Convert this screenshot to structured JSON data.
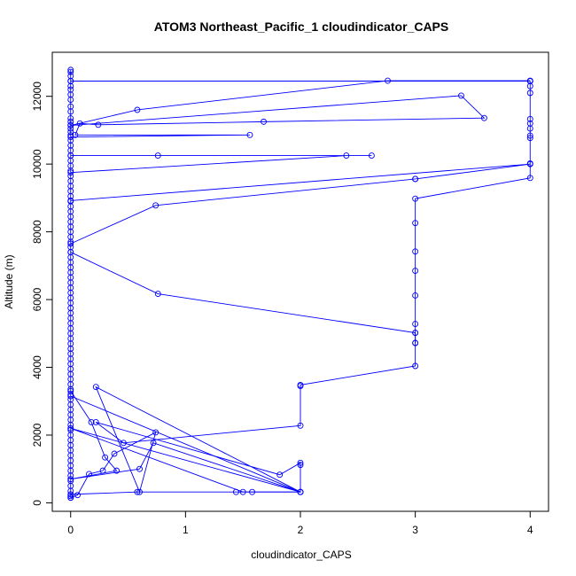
{
  "chart_data": {
    "type": "line",
    "title": "ATOM3 Northeast_Pacific_1 cloudindicator_CAPS",
    "xlabel": "cloudindicator_CAPS",
    "ylabel": "Altitude (m)",
    "xlim": [
      -0.16,
      4.16
    ],
    "ylim": [
      -250,
      13300
    ],
    "x_ticks": [
      0,
      1,
      2,
      3,
      4
    ],
    "y_ticks": [
      0,
      2000,
      4000,
      6000,
      8000,
      10000,
      12000
    ],
    "grid": false,
    "legend": "none",
    "series_color": "#0000ff",
    "series": [
      {
        "x": [
          0,
          0.06,
          0.16,
          0.28,
          0.38,
          0.74,
          0.6,
          0.22,
          2.0,
          2.0,
          2.0,
          1.82,
          0.22,
          0.46,
          2.0,
          2.0,
          2.0,
          3.0,
          3.0,
          3.0,
          3.0,
          3.0,
          3.0,
          3.0,
          3.0,
          3.0,
          4.0,
          4.0,
          4.0,
          4.0,
          4.0,
          4.0,
          4.0,
          4.0,
          4.0,
          4.0
        ],
        "y": [
          150,
          230,
          850,
          950,
          1450,
          2080,
          320,
          3420,
          320,
          1120,
          1180,
          830,
          2380,
          1770,
          2280,
          3450,
          3480,
          4040,
          4720,
          5020,
          5280,
          6120,
          6850,
          7420,
          8260,
          8980,
          9590,
          10020,
          10770,
          10840,
          11050,
          11200,
          11330,
          12100,
          12300,
          12450
        ],
        "type": "line-with-markers"
      },
      {
        "x": [
          0,
          2.0,
          1.58,
          1.44,
          0.58,
          0
        ],
        "y": [
          3150,
          320,
          320,
          320,
          320,
          250
        ],
        "type": "line-with-markers"
      },
      {
        "x": [
          0,
          0.76,
          3.0,
          3.0
        ],
        "y": [
          7400,
          6170,
          5020,
          4720
        ],
        "type": "line-with-markers"
      },
      {
        "x": [
          0,
          0.74,
          3.0
        ],
        "y": [
          7650,
          8780,
          9560
        ],
        "type": "line-with-markers"
      },
      {
        "x": [
          0,
          2.4,
          2.62,
          0.76,
          0
        ],
        "y": [
          9750,
          10250,
          10250,
          10250,
          10250
        ],
        "type": "line-with-markers"
      },
      {
        "x": [
          0,
          1.56,
          0.04,
          0.08,
          0.24,
          1.68,
          3.6,
          3.4,
          0,
          0.58,
          2.76,
          4.0
        ],
        "y": [
          10800,
          10860,
          10860,
          11200,
          11160,
          11250,
          11360,
          12020,
          11140,
          11600,
          12460,
          12460
        ],
        "type": "line-with-markers"
      },
      {
        "x": [
          0,
          0.18,
          0.3,
          0.4,
          0,
          0.6,
          0.72,
          2.0,
          0,
          1.5,
          2.0
        ],
        "y": [
          3300,
          2380,
          1340,
          950,
          700,
          1000,
          1770,
          320,
          2200,
          320,
          320
        ],
        "type": "line-with-markers"
      },
      {
        "x": [
          0,
          4.0,
          3.0
        ],
        "y": [
          8920,
          10000,
          9560
        ],
        "type": "line-with-markers"
      },
      {
        "x": [
          0,
          4.0
        ],
        "y": [
          12450,
          12450
        ],
        "type": "line-with-markers"
      }
    ],
    "y_axis_column": {
      "x": 0,
      "y": [
        12780,
        12720,
        12600,
        12450,
        12300,
        12200,
        12050,
        11900,
        11700,
        11550,
        11350,
        11250,
        11150,
        11050,
        10950,
        10850,
        10700,
        10550,
        10400,
        10250,
        10100,
        9950,
        9800,
        9650,
        9500,
        9350,
        9200,
        9050,
        8900,
        8750,
        8600,
        8450,
        8300,
        8150,
        8000,
        7850,
        7700,
        7550,
        7400,
        7250,
        7100,
        6950,
        6800,
        6650,
        6500,
        6350,
        6200,
        6050,
        5900,
        5750,
        5600,
        5450,
        5300,
        5150,
        5000,
        4850,
        4700,
        4550,
        4400,
        4250,
        4100,
        3950,
        3800,
        3650,
        3500,
        3350,
        3200,
        3050,
        2900,
        2750,
        2600,
        2450,
        2300,
        2150,
        2000,
        1850,
        1700,
        1550,
        1400,
        1250,
        1100,
        950,
        800,
        650,
        500,
        350,
        200,
        150
      ]
    }
  }
}
